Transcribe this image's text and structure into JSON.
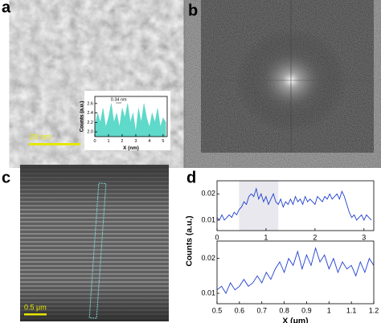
{
  "panels": [
    "a",
    "b",
    "c",
    "d"
  ],
  "scale_bars": [
    "20 nm",
    "0.5 μm"
  ],
  "chart_data": [
    {
      "type": "area",
      "xlabel": "X (nm)",
      "ylabel": "Counts (a.u.)",
      "annotation": "0.34 nm",
      "color": "#5fd9c9",
      "x": [
        0,
        0.2,
        0.4,
        0.6,
        0.8,
        1.0,
        1.2,
        1.4,
        1.6,
        1.8,
        2.0,
        2.2,
        2.4,
        2.6,
        2.8,
        3.0,
        3.2,
        3.4,
        3.6,
        3.8,
        4.0,
        4.2,
        4.4,
        4.6,
        4.8,
        5.0,
        5.2
      ],
      "values": [
        2.1,
        2.4,
        2.2,
        2.5,
        2.1,
        2.3,
        2.6,
        2.2,
        2.4,
        2.1,
        2.5,
        2.3,
        2.6,
        2.2,
        2.4,
        2.0,
        2.5,
        2.2,
        2.6,
        2.3,
        2.1,
        2.4,
        2.2,
        2.5,
        2.1,
        2.3,
        2.2
      ],
      "xlim": [
        0,
        5.3
      ],
      "ylim": [
        1.9,
        2.75
      ],
      "xticks": [
        0,
        1,
        2,
        3,
        4,
        5
      ],
      "yticks": [
        {
          "value": 2,
          "label": "2.0"
        },
        2.2,
        2.4,
        2.6
      ]
    },
    {
      "type": "line",
      "ylabel": "Counts (a.u.)",
      "color": "#1f3fd0",
      "shaded_range": [
        0.45,
        1.25
      ],
      "x": [
        0,
        0.05,
        0.1,
        0.15,
        0.2,
        0.25,
        0.3,
        0.35,
        0.4,
        0.45,
        0.5,
        0.55,
        0.6,
        0.65,
        0.7,
        0.75,
        0.8,
        0.85,
        0.9,
        0.95,
        1.0,
        1.05,
        1.1,
        1.15,
        1.2,
        1.25,
        1.3,
        1.35,
        1.4,
        1.45,
        1.5,
        1.55,
        1.6,
        1.65,
        1.7,
        1.75,
        1.8,
        1.85,
        1.9,
        1.95,
        2.0,
        2.05,
        2.1,
        2.15,
        2.2,
        2.25,
        2.3,
        2.35,
        2.4,
        2.45,
        2.5,
        2.55,
        2.6,
        2.65,
        2.7,
        2.75,
        2.8,
        2.85,
        2.9,
        2.95,
        3.0,
        3.05,
        3.1,
        3.15
      ],
      "values": [
        0.011,
        0.01,
        0.012,
        0.01,
        0.011,
        0.012,
        0.011,
        0.013,
        0.012,
        0.014,
        0.015,
        0.017,
        0.016,
        0.019,
        0.02,
        0.019,
        0.022,
        0.018,
        0.02,
        0.017,
        0.019,
        0.016,
        0.018,
        0.02,
        0.017,
        0.016,
        0.018,
        0.015,
        0.017,
        0.016,
        0.018,
        0.016,
        0.019,
        0.017,
        0.018,
        0.016,
        0.019,
        0.017,
        0.018,
        0.017,
        0.016,
        0.019,
        0.018,
        0.017,
        0.019,
        0.018,
        0.02,
        0.018,
        0.019,
        0.02,
        0.018,
        0.021,
        0.019,
        0.016,
        0.013,
        0.011,
        0.012,
        0.01,
        0.011,
        0.012,
        0.01,
        0.012,
        0.011,
        0.01
      ],
      "xlim": [
        0,
        3.2
      ],
      "ylim": [
        0.006,
        0.025
      ],
      "xticks": [
        0,
        1,
        2,
        3
      ],
      "yticks": [
        0.01,
        0.02
      ]
    },
    {
      "type": "line",
      "xlabel": "X (μm)",
      "color": "#1f3fd0",
      "x": [
        0.5,
        0.52,
        0.54,
        0.56,
        0.58,
        0.6,
        0.62,
        0.64,
        0.66,
        0.68,
        0.7,
        0.72,
        0.74,
        0.76,
        0.78,
        0.8,
        0.82,
        0.84,
        0.86,
        0.88,
        0.9,
        0.92,
        0.94,
        0.96,
        0.98,
        1.0,
        1.02,
        1.04,
        1.06,
        1.08,
        1.1,
        1.12,
        1.14,
        1.16,
        1.18,
        1.2
      ],
      "values": [
        0.011,
        0.012,
        0.01,
        0.013,
        0.011,
        0.012,
        0.014,
        0.012,
        0.013,
        0.015,
        0.013,
        0.016,
        0.014,
        0.017,
        0.019,
        0.016,
        0.02,
        0.018,
        0.022,
        0.017,
        0.021,
        0.018,
        0.023,
        0.019,
        0.021,
        0.017,
        0.02,
        0.016,
        0.019,
        0.017,
        0.018,
        0.015,
        0.019,
        0.016,
        0.02,
        0.018
      ],
      "xlim": [
        0.5,
        1.2
      ],
      "ylim": [
        0.007,
        0.025
      ],
      "xticks": [
        0.5,
        0.6,
        0.7,
        0.8,
        0.9,
        1.0,
        1.1,
        1.2
      ],
      "yticks": [
        0.01,
        0.02
      ]
    }
  ]
}
